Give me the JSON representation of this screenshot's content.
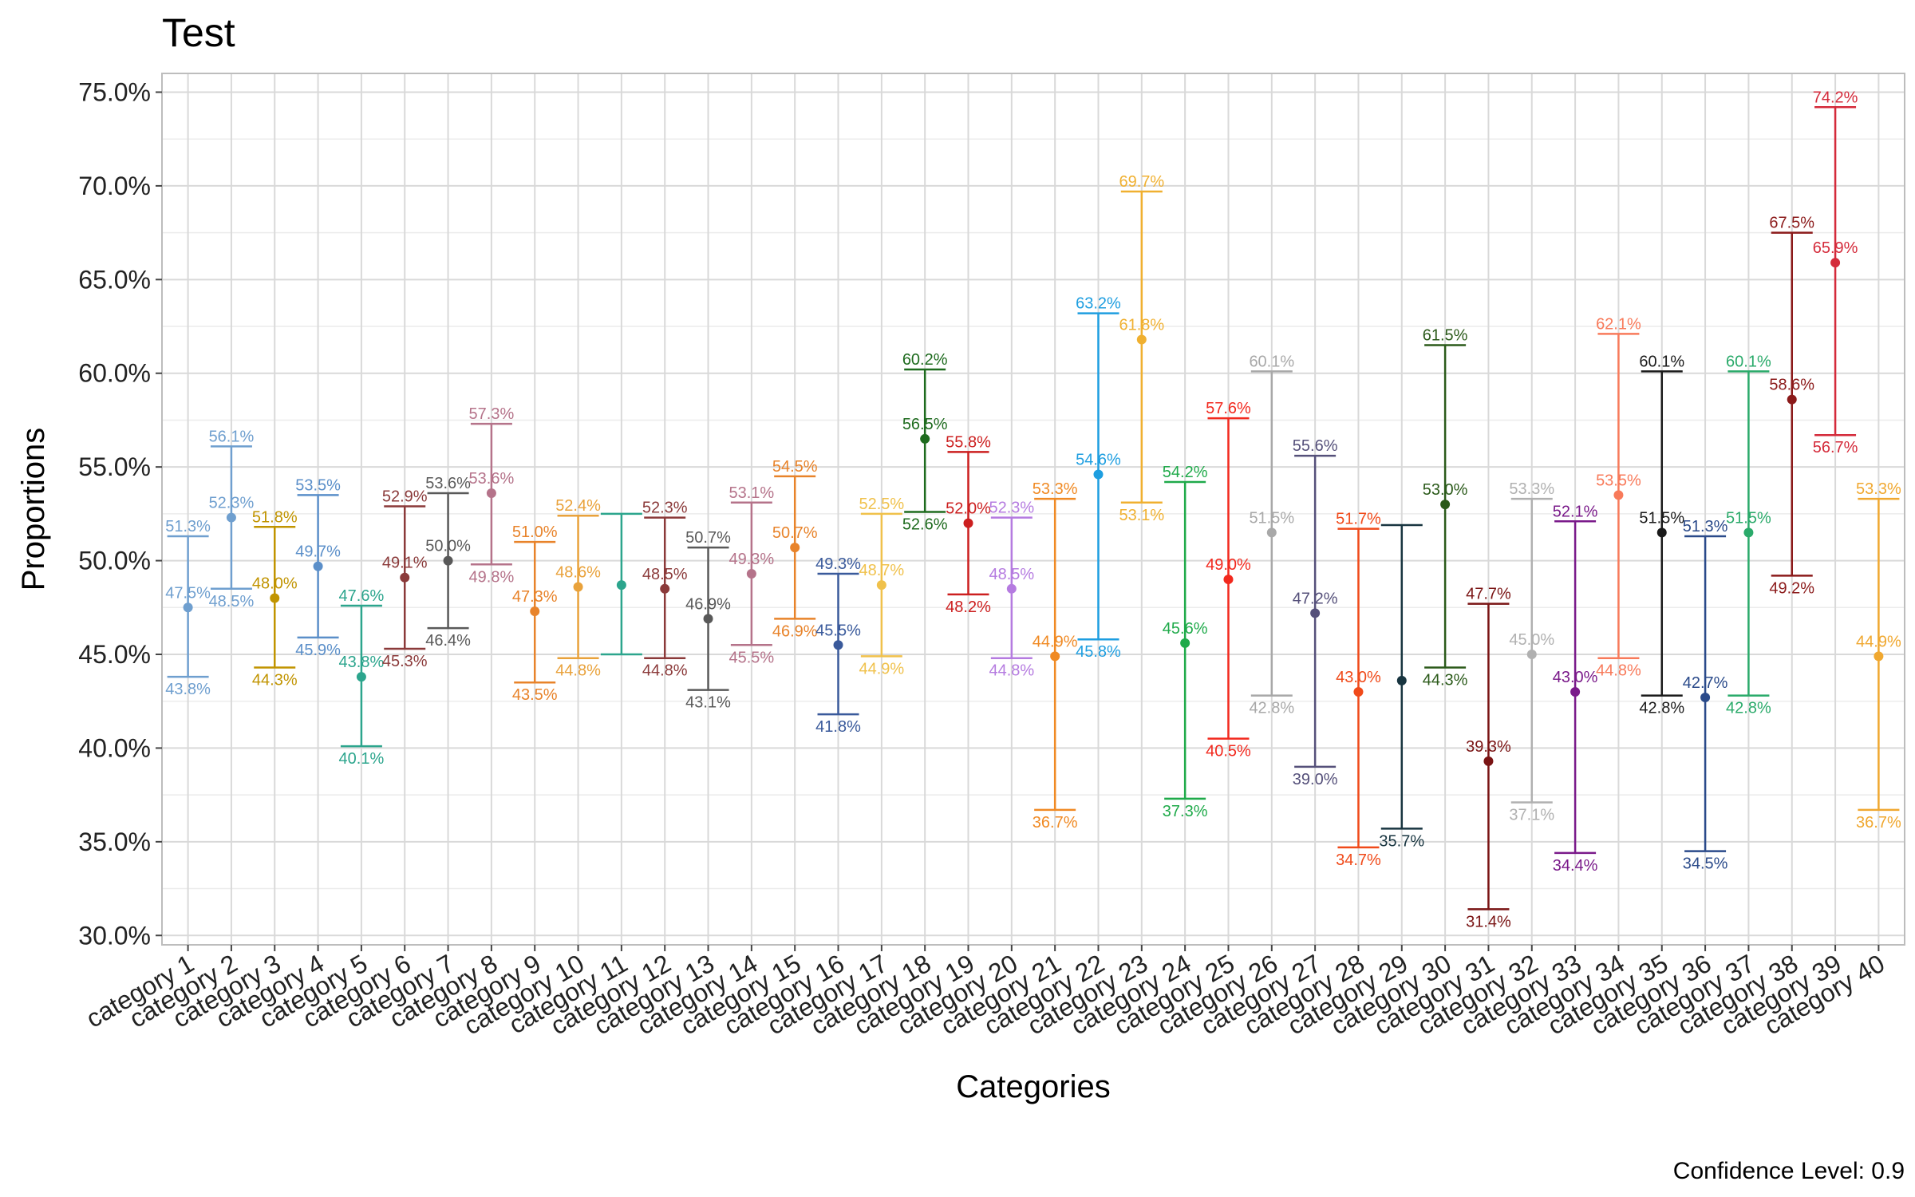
{
  "chart_data": {
    "type": "errorbar",
    "title": "Test",
    "xlabel": "Categories",
    "ylabel": "Proportions",
    "caption": "Confidence Level: 0.9",
    "ylim": [
      0.295,
      0.76
    ],
    "yticks": [
      0.3,
      0.35,
      0.4,
      0.45,
      0.5,
      0.55,
      0.6,
      0.65,
      0.7,
      0.75
    ],
    "ytick_labels": [
      "30.0%",
      "35.0%",
      "40.0%",
      "45.0%",
      "50.0%",
      "55.0%",
      "60.0%",
      "65.0%",
      "70.0%",
      "75.0%"
    ],
    "grid": true,
    "categories": [
      "category 1",
      "category 2",
      "category 3",
      "category 4",
      "category 5",
      "category 6",
      "category 7",
      "category 8",
      "category 9",
      "category 10",
      "category 11",
      "category 12",
      "category 13",
      "category 14",
      "category 15",
      "category 16",
      "category 17",
      "category 18",
      "category 19",
      "category 20",
      "category 21",
      "category 22",
      "category 23",
      "category 24",
      "category 25",
      "category 26",
      "category 27",
      "category 28",
      "category 29",
      "category 30",
      "category 31",
      "category 32",
      "category 33",
      "category 34",
      "category 35",
      "category 36",
      "category 37",
      "category 38",
      "category 39",
      "category 40"
    ],
    "points": [
      {
        "category": "category 1",
        "estimate": 0.475,
        "lower": 0.438,
        "upper": 0.513,
        "estimate_label": "47.5%",
        "lower_label": "43.8%",
        "upper_label": "51.3%",
        "color": "#6f9fcf"
      },
      {
        "category": "category 2",
        "estimate": 0.523,
        "lower": 0.485,
        "upper": 0.561,
        "estimate_label": "52.3%",
        "lower_label": "48.5%",
        "upper_label": "56.1%",
        "color": "#6f9fcf"
      },
      {
        "category": "category 3",
        "estimate": 0.48,
        "lower": 0.443,
        "upper": 0.518,
        "estimate_label": "48.0%",
        "lower_label": "44.3%",
        "upper_label": "51.8%",
        "color": "#c19400"
      },
      {
        "category": "category 4",
        "estimate": 0.497,
        "lower": 0.459,
        "upper": 0.535,
        "estimate_label": "49.7%",
        "lower_label": "45.9%",
        "upper_label": "53.5%",
        "color": "#5b8fc9"
      },
      {
        "category": "category 5",
        "estimate": 0.438,
        "lower": 0.401,
        "upper": 0.476,
        "estimate_label": "43.8%",
        "lower_label": "40.1%",
        "upper_label": "47.6%",
        "color": "#2ca58d"
      },
      {
        "category": "category 6",
        "estimate": 0.491,
        "lower": 0.453,
        "upper": 0.529,
        "estimate_label": "49.1%",
        "lower_label": "45.3%",
        "upper_label": "52.9%",
        "color": "#8b3a3a"
      },
      {
        "category": "category 7",
        "estimate": 0.5,
        "lower": 0.464,
        "upper": 0.536,
        "estimate_label": "50.0%",
        "lower_label": "46.4%",
        "upper_label": "53.6%",
        "color": "#595959"
      },
      {
        "category": "category 8",
        "estimate": 0.536,
        "lower": 0.498,
        "upper": 0.573,
        "estimate_label": "53.6%",
        "lower_label": "49.8%",
        "upper_label": "57.3%",
        "color": "#b5738a"
      },
      {
        "category": "category 9",
        "estimate": 0.473,
        "lower": 0.435,
        "upper": 0.51,
        "estimate_label": "47.3%",
        "lower_label": "43.5%",
        "upper_label": "51.0%",
        "color": "#e8832a"
      },
      {
        "category": "category 10",
        "estimate": 0.486,
        "lower": 0.448,
        "upper": 0.524,
        "estimate_label": "48.6%",
        "lower_label": "44.8%",
        "upper_label": "52.4%",
        "color": "#e9a23b"
      },
      {
        "category": "category 11",
        "estimate": 0.487,
        "lower": 0.45,
        "upper": 0.525,
        "estimate_label": "",
        "lower_label": "",
        "upper_label": "",
        "color": "#2ca58d"
      },
      {
        "category": "category 12",
        "estimate": 0.485,
        "lower": 0.448,
        "upper": 0.523,
        "estimate_label": "48.5%",
        "lower_label": "44.8%",
        "upper_label": "52.3%",
        "color": "#8b3a3a"
      },
      {
        "category": "category 13",
        "estimate": 0.469,
        "lower": 0.431,
        "upper": 0.507,
        "estimate_label": "46.9%",
        "lower_label": "43.1%",
        "upper_label": "50.7%",
        "color": "#595959"
      },
      {
        "category": "category 14",
        "estimate": 0.493,
        "lower": 0.455,
        "upper": 0.531,
        "estimate_label": "49.3%",
        "lower_label": "45.5%",
        "upper_label": "53.1%",
        "color": "#b5738a"
      },
      {
        "category": "category 15",
        "estimate": 0.507,
        "lower": 0.469,
        "upper": 0.545,
        "estimate_label": "50.7%",
        "lower_label": "46.9%",
        "upper_label": "54.5%",
        "color": "#e8832a"
      },
      {
        "category": "category 16",
        "estimate": 0.455,
        "lower": 0.418,
        "upper": 0.493,
        "estimate_label": "45.5%",
        "lower_label": "41.8%",
        "upper_label": "49.3%",
        "color": "#3a5a9b"
      },
      {
        "category": "category 17",
        "estimate": 0.487,
        "lower": 0.449,
        "upper": 0.525,
        "estimate_label": "48.7%",
        "lower_label": "44.9%",
        "upper_label": "52.5%",
        "color": "#f0c14b"
      },
      {
        "category": "category 18",
        "estimate": 0.565,
        "lower": 0.526,
        "upper": 0.602,
        "estimate_label": "56.5%",
        "lower_label": "52.6%",
        "upper_label": "60.2%",
        "color": "#1e6b1e"
      },
      {
        "category": "category 19",
        "estimate": 0.52,
        "lower": 0.482,
        "upper": 0.558,
        "estimate_label": "52.0%",
        "lower_label": "48.2%",
        "upper_label": "55.8%",
        "color": "#cc1f1f"
      },
      {
        "category": "category 20",
        "estimate": 0.485,
        "lower": 0.448,
        "upper": 0.523,
        "estimate_label": "48.5%",
        "lower_label": "44.8%",
        "upper_label": "52.3%",
        "color": "#b57be0"
      },
      {
        "category": "category 21",
        "estimate": 0.449,
        "lower": 0.367,
        "upper": 0.533,
        "estimate_label": "44.9%",
        "lower_label": "36.7%",
        "upper_label": "53.3%",
        "color": "#f08a24"
      },
      {
        "category": "category 22",
        "estimate": 0.546,
        "lower": 0.458,
        "upper": 0.632,
        "estimate_label": "54.6%",
        "lower_label": "45.8%",
        "upper_label": "63.2%",
        "color": "#1e9ee0"
      },
      {
        "category": "category 23",
        "estimate": 0.618,
        "lower": 0.531,
        "upper": 0.697,
        "estimate_label": "61.8%",
        "lower_label": "53.1%",
        "upper_label": "69.7%",
        "color": "#f0b030"
      },
      {
        "category": "category 24",
        "estimate": 0.456,
        "lower": 0.373,
        "upper": 0.542,
        "estimate_label": "45.6%",
        "lower_label": "37.3%",
        "upper_label": "54.2%",
        "color": "#1faa4a"
      },
      {
        "category": "category 25",
        "estimate": 0.49,
        "lower": 0.405,
        "upper": 0.576,
        "estimate_label": "49.0%",
        "lower_label": "40.5%",
        "upper_label": "57.6%",
        "color": "#f2291e"
      },
      {
        "category": "category 26",
        "estimate": 0.515,
        "lower": 0.428,
        "upper": 0.601,
        "estimate_label": "51.5%",
        "lower_label": "42.8%",
        "upper_label": "60.1%",
        "color": "#a8a8a8"
      },
      {
        "category": "category 27",
        "estimate": 0.472,
        "lower": 0.39,
        "upper": 0.556,
        "estimate_label": "47.2%",
        "lower_label": "39.0%",
        "upper_label": "55.6%",
        "color": "#55507a"
      },
      {
        "category": "category 28",
        "estimate": 0.43,
        "lower": 0.347,
        "upper": 0.517,
        "estimate_label": "43.0%",
        "lower_label": "34.7%",
        "upper_label": "51.7%",
        "color": "#f04a1a"
      },
      {
        "category": "category 29",
        "estimate": 0.436,
        "lower": 0.357,
        "upper": 0.519,
        "estimate_label": "",
        "lower_label": "35.7%",
        "upper_label": "",
        "color": "#183540"
      },
      {
        "category": "category 30",
        "estimate": 0.53,
        "lower": 0.443,
        "upper": 0.615,
        "estimate_label": "53.0%",
        "lower_label": "44.3%",
        "upper_label": "61.5%",
        "color": "#2b5a1a"
      },
      {
        "category": "category 31",
        "estimate": 0.393,
        "lower": 0.314,
        "upper": 0.477,
        "estimate_label": "39.3%",
        "lower_label": "31.4%",
        "upper_label": "47.7%",
        "color": "#7a1414"
      },
      {
        "category": "category 32",
        "estimate": 0.45,
        "lower": 0.371,
        "upper": 0.533,
        "estimate_label": "45.0%",
        "lower_label": "37.1%",
        "upper_label": "53.3%",
        "color": "#b0b0b0"
      },
      {
        "category": "category 33",
        "estimate": 0.43,
        "lower": 0.344,
        "upper": 0.521,
        "estimate_label": "43.0%",
        "lower_label": "34.4%",
        "upper_label": "52.1%",
        "color": "#7a1a8a"
      },
      {
        "category": "category 34",
        "estimate": 0.535,
        "lower": 0.448,
        "upper": 0.621,
        "estimate_label": "53.5%",
        "lower_label": "44.8%",
        "upper_label": "62.1%",
        "color": "#f87a5a"
      },
      {
        "category": "category 35",
        "estimate": 0.515,
        "lower": 0.428,
        "upper": 0.601,
        "estimate_label": "51.5%",
        "lower_label": "42.8%",
        "upper_label": "60.1%",
        "color": "#1a1a1a"
      },
      {
        "category": "category 36",
        "estimate": 0.427,
        "lower": 0.345,
        "upper": 0.513,
        "estimate_label": "42.7%",
        "lower_label": "34.5%",
        "upper_label": "51.3%",
        "color": "#2a4a8a"
      },
      {
        "category": "category 37",
        "estimate": 0.515,
        "lower": 0.428,
        "upper": 0.601,
        "estimate_label": "51.5%",
        "lower_label": "42.8%",
        "upper_label": "60.1%",
        "color": "#2aaa6a"
      },
      {
        "category": "category 38",
        "estimate": 0.586,
        "lower": 0.492,
        "upper": 0.675,
        "estimate_label": "58.6%",
        "lower_label": "49.2%",
        "upper_label": "67.5%",
        "color": "#8b1a1a"
      },
      {
        "category": "category 39",
        "estimate": 0.659,
        "lower": 0.567,
        "upper": 0.742,
        "estimate_label": "65.9%",
        "lower_label": "56.7%",
        "upper_label": "74.2%",
        "color": "#d42a3a"
      },
      {
        "category": "category 40",
        "estimate": 0.449,
        "lower": 0.367,
        "upper": 0.533,
        "estimate_label": "44.9%",
        "lower_label": "36.7%",
        "upper_label": "53.3%",
        "color": "#f0a830"
      }
    ]
  }
}
